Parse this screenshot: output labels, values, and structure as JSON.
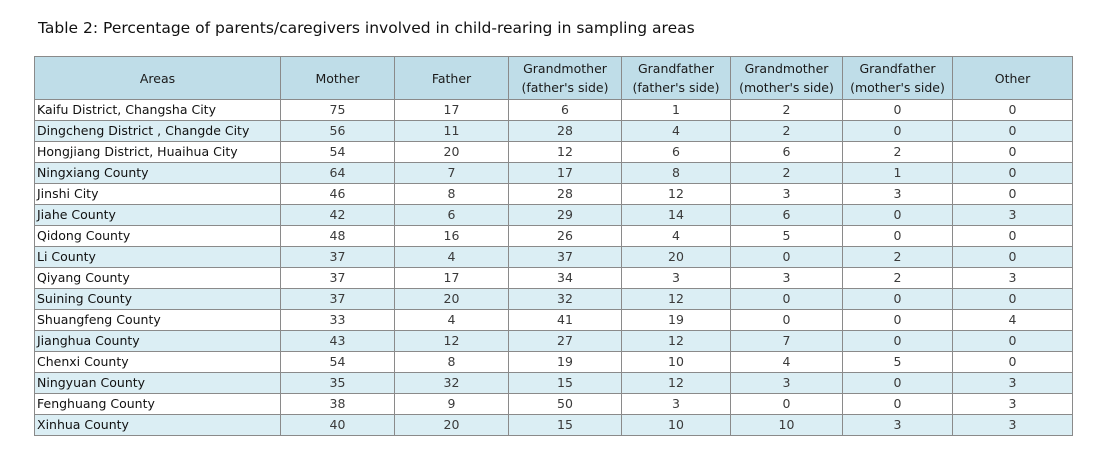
{
  "title": "Table 2: Percentage of parents/caregivers involved in child-rearing in sampling areas",
  "colors": {
    "header_bg": "#bfdde8",
    "row_shade": "#dbeef4",
    "border": "#8a8a8a"
  },
  "columns": [
    {
      "line1": "Areas",
      "line2": ""
    },
    {
      "line1": "Mother",
      "line2": ""
    },
    {
      "line1": "Father",
      "line2": ""
    },
    {
      "line1": "Grandmother",
      "line2": "(father's side)"
    },
    {
      "line1": "Grandfather",
      "line2": "(father's side)"
    },
    {
      "line1": "Grandmother",
      "line2": "(mother's side)"
    },
    {
      "line1": "Grandfather",
      "line2": "(mother's side)"
    },
    {
      "line1": "Other",
      "line2": ""
    }
  ],
  "rows": [
    [
      "Kaifu District, Changsha City",
      "75",
      "17",
      "6",
      "1",
      "2",
      "0",
      "0"
    ],
    [
      "Dingcheng District , Changde City",
      "56",
      "11",
      "28",
      "4",
      "2",
      "0",
      "0"
    ],
    [
      "Hongjiang District, Huaihua  City",
      "54",
      "20",
      "12",
      "6",
      "6",
      "2",
      "0"
    ],
    [
      "Ningxiang County",
      "64",
      "7",
      "17",
      "8",
      "2",
      "1",
      "0"
    ],
    [
      "Jinshi City",
      "46",
      "8",
      "28",
      "12",
      "3",
      "3",
      "0"
    ],
    [
      "Jiahe County",
      "42",
      "6",
      "29",
      "14",
      "6",
      "0",
      "3"
    ],
    [
      "Qidong County",
      "48",
      "16",
      "26",
      "4",
      "5",
      "0",
      "0"
    ],
    [
      "Li County",
      "37",
      "4",
      "37",
      "20",
      "0",
      "2",
      "0"
    ],
    [
      "Qiyang County",
      "37",
      "17",
      "34",
      "3",
      "3",
      "2",
      "3"
    ],
    [
      "Suining County",
      "37",
      "20",
      "32",
      "12",
      "0",
      "0",
      "0"
    ],
    [
      "Shuangfeng County",
      "33",
      "4",
      "41",
      "19",
      "0",
      "0",
      "4"
    ],
    [
      "Jianghua County",
      "43",
      "12",
      "27",
      "12",
      "7",
      "0",
      "0"
    ],
    [
      "Chenxi County",
      "54",
      "8",
      "19",
      "10",
      "4",
      "5",
      "0"
    ],
    [
      "Ningyuan County",
      "35",
      "32",
      "15",
      "12",
      "3",
      "0",
      "3"
    ],
    [
      "Fenghuang County",
      "38",
      "9",
      "50",
      "3",
      "0",
      "0",
      "3"
    ],
    [
      "Xinhua County",
      "40",
      "20",
      "15",
      "10",
      "10",
      "3",
      "3"
    ]
  ]
}
